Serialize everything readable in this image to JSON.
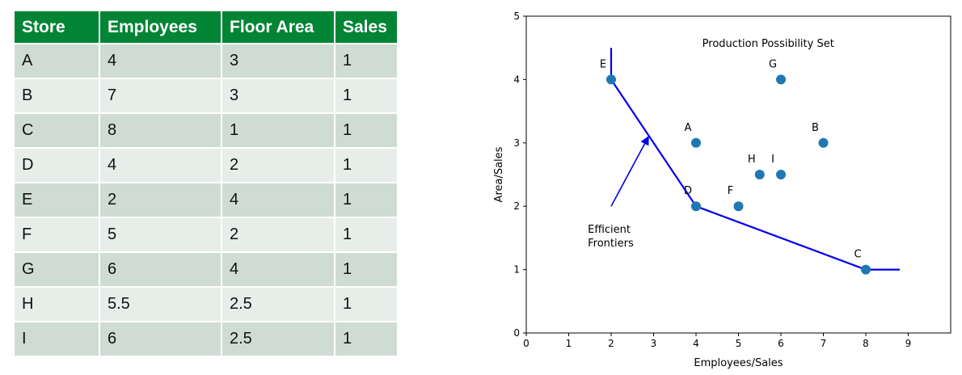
{
  "table": {
    "headers": [
      "Store",
      "Employees",
      "Floor Area",
      "Sales"
    ],
    "rows": [
      [
        "A",
        "4",
        "3",
        "1"
      ],
      [
        "B",
        "7",
        "3",
        "1"
      ],
      [
        "C",
        "8",
        "1",
        "1"
      ],
      [
        "D",
        "4",
        "2",
        "1"
      ],
      [
        "E",
        "2",
        "4",
        "1"
      ],
      [
        "F",
        "5",
        "2",
        "1"
      ],
      [
        "G",
        "6",
        "4",
        "1"
      ],
      [
        "H",
        "5.5",
        "2.5",
        "1"
      ],
      [
        "I",
        "6",
        "2.5",
        "1"
      ]
    ],
    "colors": {
      "header_bg": "#018535",
      "row_odd": "#cfdcd3",
      "row_even": "#e7eeea"
    }
  },
  "chart_data": {
    "type": "scatter",
    "title": "Production Possibility Set",
    "xlabel": "Employees/Sales",
    "ylabel": "Area/Sales",
    "xlim": [
      0,
      10
    ],
    "ylim": [
      0,
      5
    ],
    "xticks": [
      0,
      1,
      2,
      3,
      4,
      5,
      6,
      7,
      8,
      9
    ],
    "yticks": [
      0,
      1,
      2,
      3,
      4,
      5
    ],
    "grid": false,
    "points": [
      {
        "label": "A",
        "x": 4,
        "y": 3
      },
      {
        "label": "B",
        "x": 7,
        "y": 3
      },
      {
        "label": "C",
        "x": 8,
        "y": 1
      },
      {
        "label": "D",
        "x": 4,
        "y": 2
      },
      {
        "label": "E",
        "x": 2,
        "y": 4
      },
      {
        "label": "F",
        "x": 5,
        "y": 2
      },
      {
        "label": "G",
        "x": 6,
        "y": 4
      },
      {
        "label": "H",
        "x": 5.5,
        "y": 2.5
      },
      {
        "label": "I",
        "x": 6,
        "y": 2.5
      }
    ],
    "frontier": {
      "x": [
        2,
        2,
        4,
        8,
        8.8
      ],
      "y": [
        4.5,
        4,
        2,
        1,
        1
      ]
    },
    "annotation": {
      "text": [
        "Efficient",
        "Frontiers"
      ],
      "text_at": [
        1.45,
        1.58
      ],
      "arrow_from": [
        2,
        2
      ],
      "arrow_to": [
        2.88,
        3.1
      ]
    },
    "colors": {
      "point": "#1f77b4",
      "frontier": "#0000ee"
    }
  }
}
